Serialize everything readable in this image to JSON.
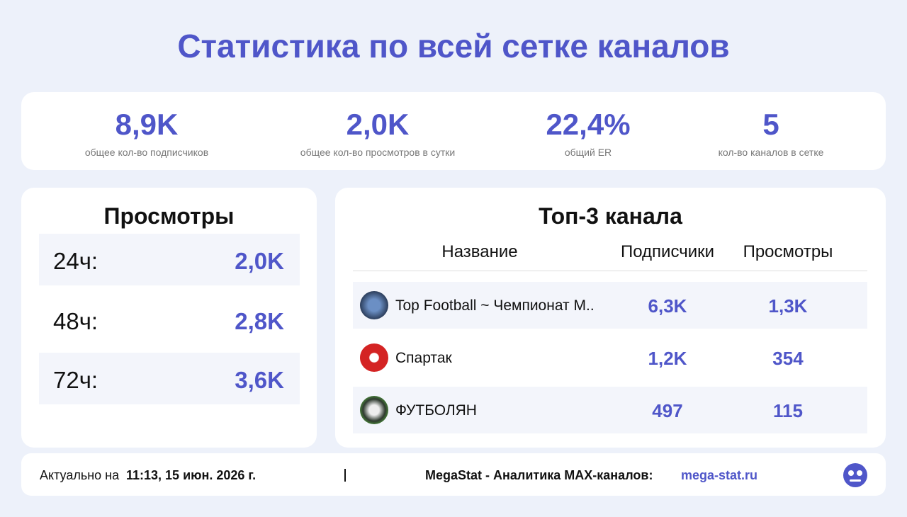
{
  "title": "Статистика по всей сетке каналов",
  "stats": [
    {
      "value": "8,9K",
      "label": "общее кол-во подписчиков"
    },
    {
      "value": "2,0K",
      "label": "общее кол-во просмотров в сутки"
    },
    {
      "value": "22,4%",
      "label": "общий ER"
    },
    {
      "value": "5",
      "label": "кол-во каналов в сетке"
    }
  ],
  "views": {
    "title": "Просмотры",
    "rows": [
      {
        "label": "24ч:",
        "value": "2,0K"
      },
      {
        "label": "48ч:",
        "value": "2,8K"
      },
      {
        "label": "72ч:",
        "value": "3,6K"
      }
    ]
  },
  "top": {
    "title": "Топ-3 канала",
    "columns": [
      "Название",
      "Подписчики",
      "Просмотры"
    ],
    "rows": [
      {
        "name": "Top Football ~ Чемпионат М..",
        "subscribers": "6,3K",
        "views": "1,3K"
      },
      {
        "name": "Спартак",
        "subscribers": "1,2K",
        "views": "354"
      },
      {
        "name": "ФУТБОЛЯН",
        "subscribers": "497",
        "views": "115"
      }
    ]
  },
  "footer": {
    "updated_prefix": "Актуально на",
    "updated": "11:13, 15 июн. 2026 г.",
    "brand": "MegaStat - Аналитика MAX-каналов:",
    "site": "mega-stat.ru"
  }
}
